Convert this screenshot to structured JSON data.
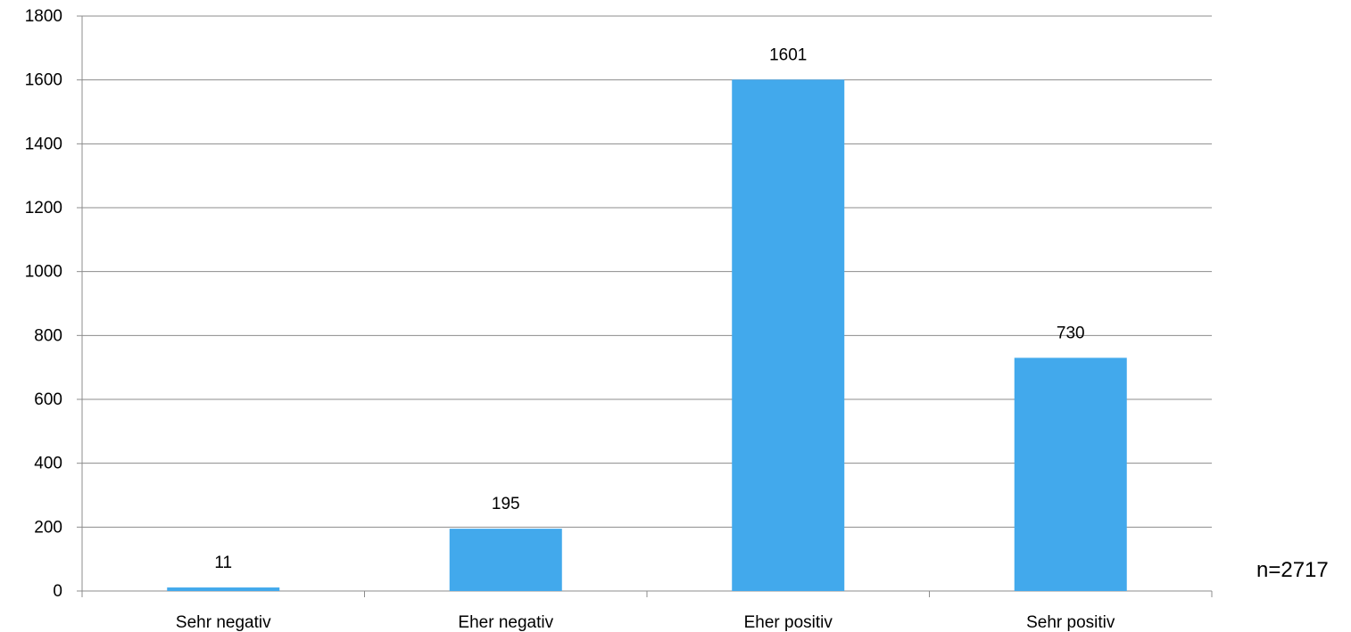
{
  "chart_data": {
    "type": "bar",
    "categories": [
      "Sehr negativ",
      "Eher negativ",
      "Eher positiv",
      "Sehr positiv"
    ],
    "values": [
      11,
      195,
      1601,
      730
    ],
    "data_labels": [
      "11",
      "195",
      "1601",
      "730"
    ],
    "title": "",
    "xlabel": "",
    "ylabel": "",
    "ylim": [
      0,
      1800
    ],
    "yticks": [
      0,
      200,
      400,
      600,
      800,
      1000,
      1200,
      1400,
      1600,
      1800
    ],
    "grid": true,
    "legend": "none",
    "bar_color": "#42a9ec",
    "grid_color": "#8c8c8c"
  },
  "note": "n=2717"
}
